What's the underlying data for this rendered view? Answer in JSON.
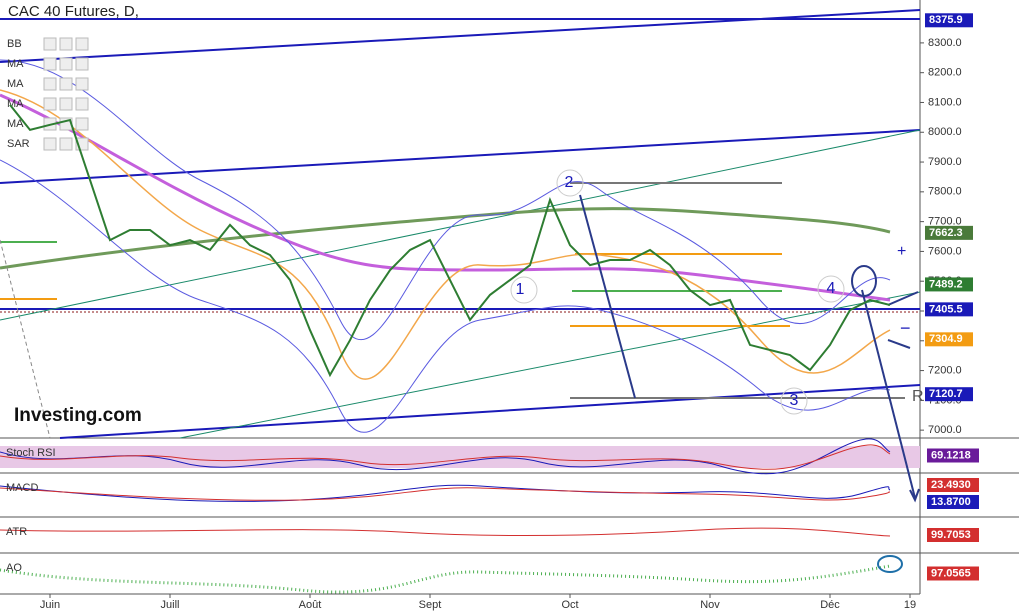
{
  "chart_data": {
    "type": "line",
    "title": "CAC 40 Futures, D,",
    "watermark": "Investing.com",
    "legend_items": [
      "BB",
      "MA",
      "MA",
      "MA",
      "MA",
      "SAR"
    ],
    "annotations": [
      "1",
      "2",
      "3",
      "4",
      "R"
    ],
    "categories": [
      null,
      null,
      "Juin",
      null,
      null,
      null,
      null,
      null,
      "Juill",
      null,
      null,
      null,
      null,
      null,
      null,
      "Août",
      null,
      null,
      null,
      null,
      null,
      "Sept",
      null,
      null,
      null,
      null,
      null,
      null,
      "Oct",
      null,
      null,
      null,
      null,
      null,
      null,
      "Nov",
      null,
      null,
      null,
      null,
      null,
      "Déc",
      null,
      null,
      null,
      "19"
    ],
    "series": [
      {
        "color": "#2e7d32",
        "values": [
          8092,
          8008,
          8025,
          8041,
          7840,
          7638,
          7672,
          7672,
          7621,
          7638,
          7605,
          7689,
          7621,
          7588,
          7504,
          7336,
          7185,
          7302,
          7437,
          7537,
          7605,
          7638,
          7504,
          7370,
          7454,
          7504,
          7554,
          7773,
          7621,
          7554,
          7571,
          7571,
          7605,
          7554,
          7470,
          7420,
          7437,
          7286,
          7269,
          7252,
          7202,
          7286,
          7403,
          7437,
          7420,
          null
        ]
      }
    ],
    "ylim": [
      6977,
      8444
    ],
    "yticks": [
      {
        "value": 7000,
        "label": "7000.0"
      },
      {
        "value": 7100,
        "label": "7100.0"
      },
      {
        "value": 7200,
        "label": "7200.0"
      },
      {
        "value": 7300,
        "label": "7300.0"
      },
      {
        "value": 7400,
        "label": "7400.0"
      },
      {
        "value": 7500,
        "label": "7500.0"
      },
      {
        "value": 7600,
        "label": "7600.0"
      },
      {
        "value": 7700,
        "label": "7700.0"
      },
      {
        "value": 7800,
        "label": "7800.0"
      },
      {
        "value": 7900,
        "label": "7900.0"
      },
      {
        "value": 8000,
        "label": "8000.0"
      },
      {
        "value": 8100,
        "label": "8100.0"
      },
      {
        "value": 8200,
        "label": "8200.0"
      },
      {
        "value": 8300,
        "label": "8300.0"
      }
    ],
    "price_labels": [
      {
        "value": 8375.9,
        "label": "8375.9",
        "color": "#1a1ab8"
      },
      {
        "value": 7662.3,
        "label": "7662.3",
        "color": "#4a7a3a"
      },
      {
        "value": 7489.2,
        "label": "7489.2",
        "color": "#2e7d32"
      },
      {
        "value": 7405.5,
        "label": "7405.5",
        "color": "#1a1ab8"
      },
      {
        "value": 7304.9,
        "label": "7304.9",
        "color": "#f39c12"
      },
      {
        "value": 7120.7,
        "label": "7120.7",
        "color": "#1a1ab8"
      }
    ],
    "panels": [
      {
        "name": "Stoch RSI",
        "value_labels": [
          {
            "value": 69.1218,
            "label": "69.1218",
            "color": "#6a1b9a"
          }
        ]
      },
      {
        "name": "MACD",
        "value_labels": [
          {
            "value": 23.493,
            "label": "23.4930",
            "color": "#d32f2f"
          },
          {
            "value": 13.87,
            "label": "13.8700",
            "color": "#1a1ab8"
          }
        ]
      },
      {
        "name": "ATR",
        "value_labels": [
          {
            "value": 99.7053,
            "label": "99.7053",
            "color": "#d32f2f"
          }
        ]
      },
      {
        "name": "AO",
        "value_labels": [
          {
            "value": 97.0565,
            "label": "97.0565",
            "color": "#d32f2f"
          }
        ]
      }
    ]
  }
}
